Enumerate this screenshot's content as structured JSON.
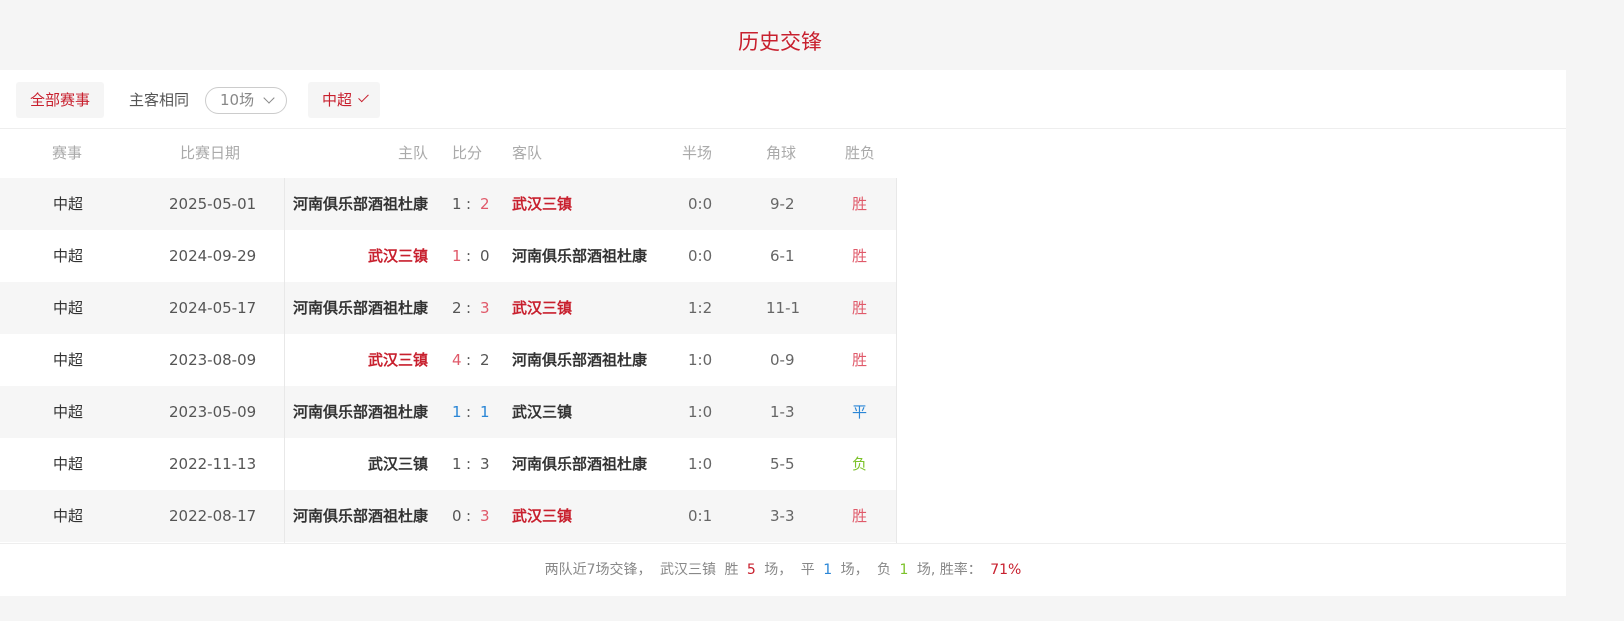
{
  "title": "历史交锋",
  "filters": {
    "all": "全部赛事",
    "same_home_away": "主客相同",
    "count": "10场",
    "league": "中超"
  },
  "headers": [
    "赛事",
    "比赛日期",
    "主队",
    "比分",
    "客队",
    "半场",
    "角球",
    "胜负"
  ],
  "rows": [
    {
      "league": "中超",
      "date": "2025-05-01",
      "home": "河南俱乐部酒祖杜康",
      "hs": "1",
      "as": "2",
      "away": "武汉三镇",
      "half": "0:0",
      "corner": "9-2",
      "result": "胜"
    },
    {
      "league": "中超",
      "date": "2024-09-29",
      "home": "武汉三镇",
      "hs": "1",
      "as": "0",
      "away": "河南俱乐部酒祖杜康",
      "half": "0:0",
      "corner": "6-1",
      "result": "胜"
    },
    {
      "league": "中超",
      "date": "2024-05-17",
      "home": "河南俱乐部酒祖杜康",
      "hs": "2",
      "as": "3",
      "away": "武汉三镇",
      "half": "1:2",
      "corner": "11-1",
      "result": "胜"
    },
    {
      "league": "中超",
      "date": "2023-08-09",
      "home": "武汉三镇",
      "hs": "4",
      "as": "2",
      "away": "河南俱乐部酒祖杜康",
      "half": "1:0",
      "corner": "0-9",
      "result": "胜"
    },
    {
      "league": "中超",
      "date": "2023-05-09",
      "home": "河南俱乐部酒祖杜康",
      "hs": "1",
      "as": "1",
      "away": "武汉三镇",
      "half": "1:0",
      "corner": "1-3",
      "result": "平"
    },
    {
      "league": "中超",
      "date": "2022-11-13",
      "home": "武汉三镇",
      "hs": "1",
      "as": "3",
      "away": "河南俱乐部酒祖杜康",
      "half": "1:0",
      "corner": "5-5",
      "result": "负"
    },
    {
      "league": "中超",
      "date": "2022-08-17",
      "home": "河南俱乐部酒祖杜康",
      "hs": "0",
      "as": "3",
      "away": "武汉三镇",
      "half": "0:1",
      "corner": "3-3",
      "result": "胜"
    }
  ],
  "summary": {
    "prefix": "两队近7场交锋，",
    "team": "武汉三镇",
    "win_label": "胜",
    "wins": "5",
    "unit1": "场，",
    "draw_label": "平",
    "draws": "1",
    "unit2": "场，",
    "loss_label": "负",
    "losses": "1",
    "unit3": "场, 胜率：",
    "rate": "71%"
  },
  "colors": {
    "accent": "#c8202e",
    "draw": "#2a86d6",
    "loss": "#7cc22a"
  }
}
